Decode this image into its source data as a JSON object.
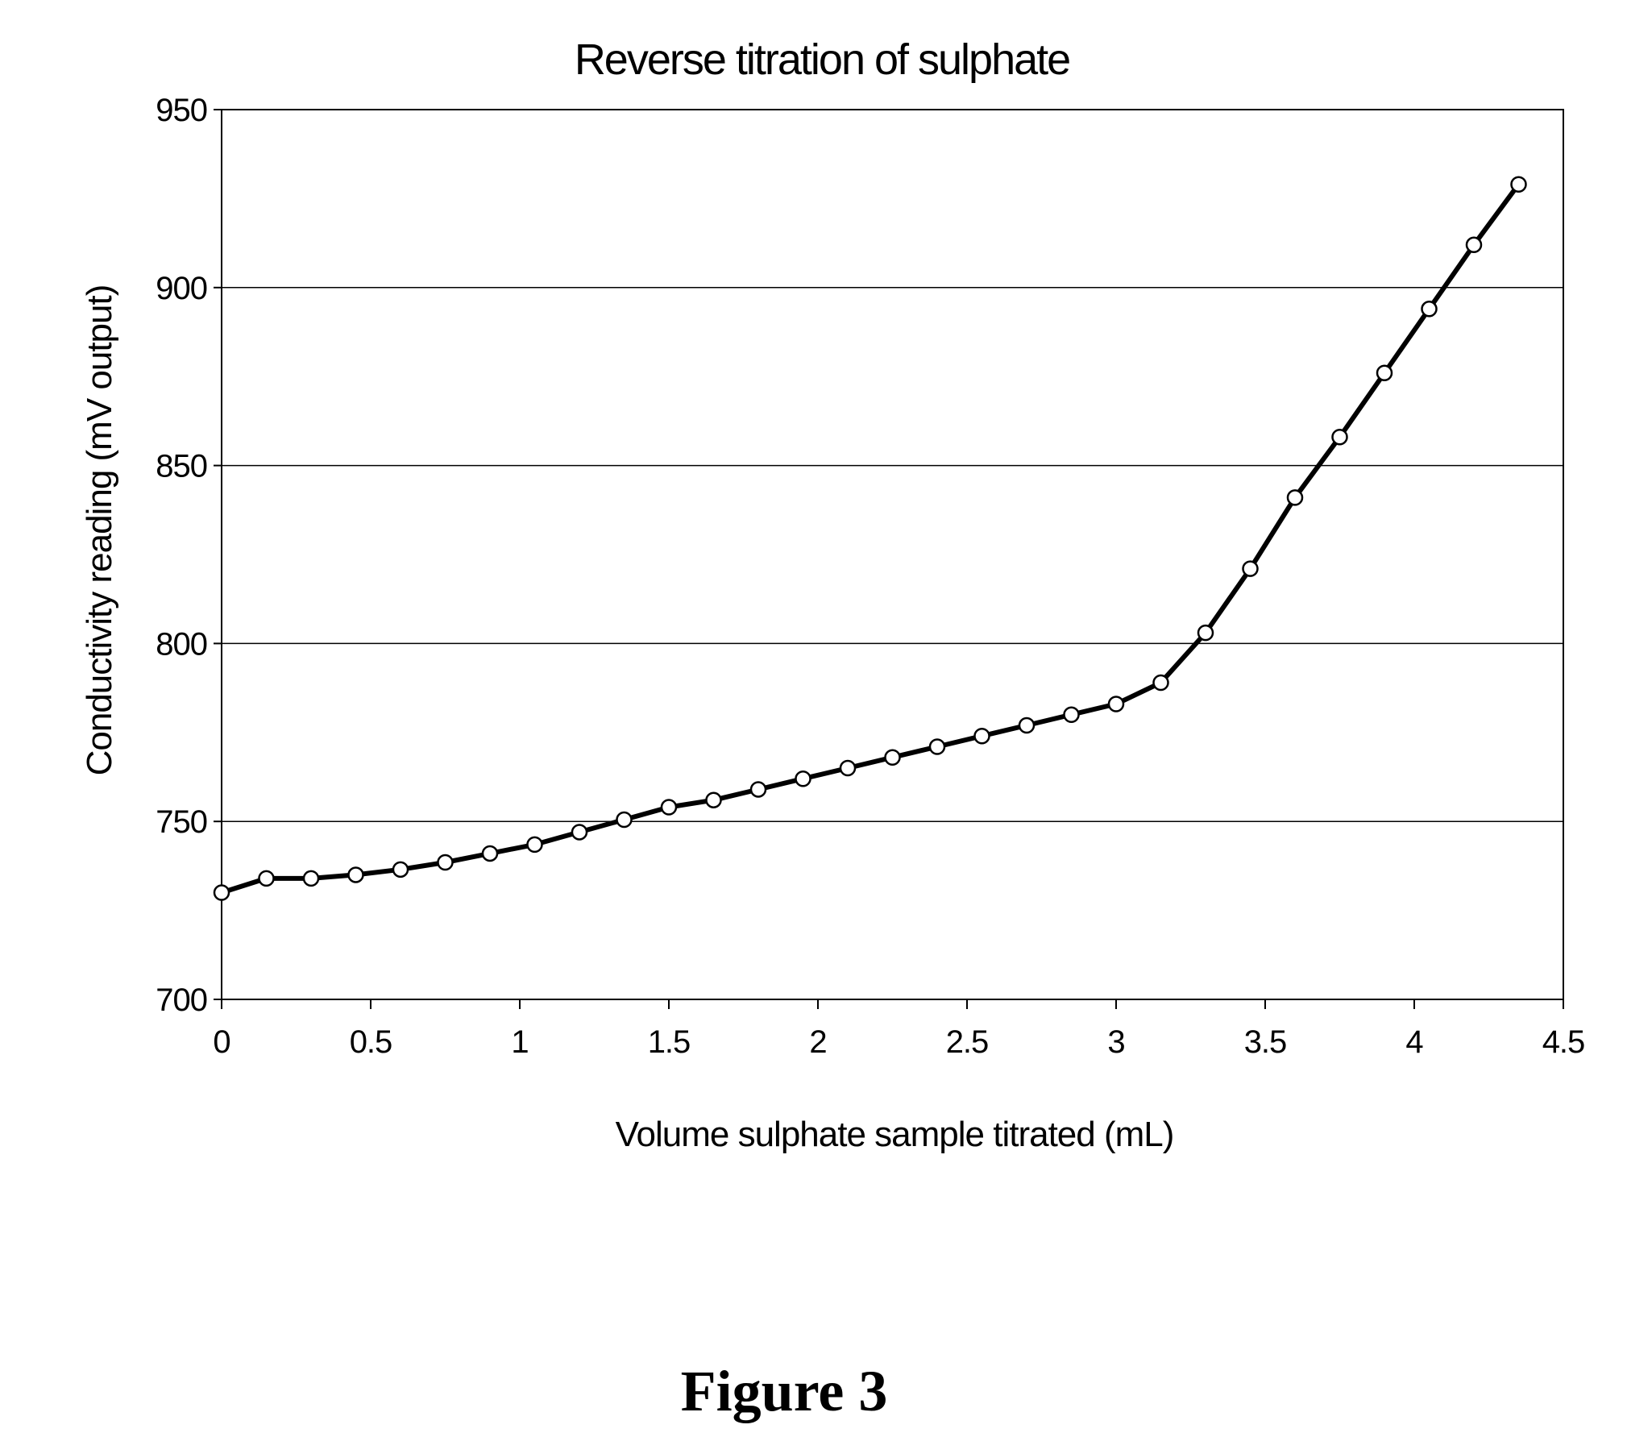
{
  "figure": {
    "caption": "Figure 3"
  },
  "chart_data": {
    "type": "line",
    "title": "Reverse titration of sulphate",
    "xlabel": "Volume sulphate sample titrated (mL)",
    "ylabel": "Conductivity reading (mV output)",
    "xlim": [
      0,
      4.5
    ],
    "ylim": [
      700,
      950
    ],
    "xticks": [
      0,
      0.5,
      1,
      1.5,
      2,
      2.5,
      3,
      3.5,
      4,
      4.5
    ],
    "xtick_labels": [
      "0",
      "0.5",
      "1",
      "1.5",
      "2",
      "2.5",
      "3",
      "3.5",
      "4",
      "4.5"
    ],
    "yticks": [
      700,
      750,
      800,
      850,
      900,
      950
    ],
    "ytick_labels": [
      "700",
      "750",
      "800",
      "850",
      "900",
      "950"
    ],
    "grid": "horizontal",
    "legend": "none",
    "marker": "open-circle",
    "line_color": "#000000",
    "series": [
      {
        "x": [
          0,
          0.15,
          0.3,
          0.45,
          0.6,
          0.75,
          0.9,
          1.05,
          1.2,
          1.35,
          1.5,
          1.65,
          1.8,
          1.95,
          2.1,
          2.25,
          2.4,
          2.55,
          2.7,
          2.85,
          3.0,
          3.15,
          3.3,
          3.45,
          3.6,
          3.75,
          3.9,
          4.05,
          4.2,
          4.35
        ],
        "y": [
          730,
          734,
          734,
          735,
          736.5,
          738.5,
          741,
          743.5,
          747,
          750.5,
          754,
          756,
          759,
          762,
          765,
          768,
          771,
          774,
          777,
          780,
          783,
          789,
          803,
          821,
          841,
          858,
          876,
          894,
          912,
          929
        ]
      }
    ]
  }
}
